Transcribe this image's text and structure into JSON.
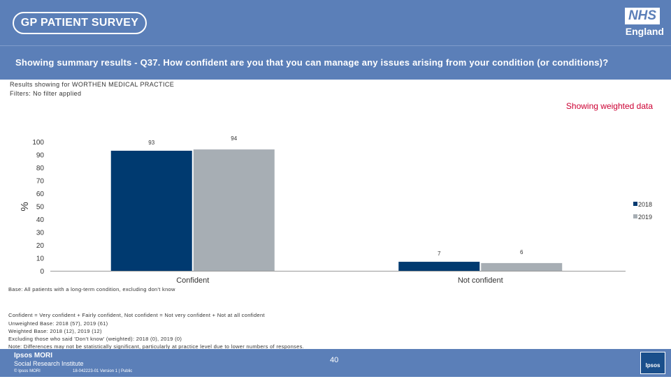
{
  "header": {
    "survey_logo": "GP PATIENT SURVEY",
    "nhs_logo": "NHS",
    "nhs_sub": "England"
  },
  "question": "Showing summary results - Q37.  How confident are you that you can manage any issues arising from your condition (or conditions)?",
  "results_for": "Results showing for WORTHEN MEDICAL PRACTICE",
  "filters": "Filters: No filter applied",
  "weighted_label": "Showing weighted data",
  "chart_data": {
    "type": "bar",
    "categories": [
      "Confident",
      "Not confident"
    ],
    "series": [
      {
        "name": "2018",
        "values": [
          93,
          7
        ],
        "color": "#003a70"
      },
      {
        "name": "2019",
        "values": [
          94,
          6
        ],
        "color": "#a7aeb4"
      }
    ],
    "ylabel": "%",
    "ylim": [
      0,
      100
    ],
    "yticks": [
      0,
      10,
      20,
      30,
      40,
      50,
      60,
      70,
      80,
      90,
      100
    ],
    "legend_position": "right",
    "grid": false
  },
  "base_note": "Base: All patients with a long-term condition, excluding don't know",
  "notes": [
    "Confident = Very confident + Fairly confident, Not confident = Not very confident + Not at all confident",
    "Unweighted Base: 2018 (57), 2019 (61)",
    "Weighted Base: 2018 (12), 2019 (12)",
    "Excluding those who said 'Don't know' (weighted): 2018 (0), 2019 (0)",
    "Note: Differences may not be statistically significant, particularly at practice level due to lower numbers of responses."
  ],
  "footer": {
    "ipsos_title": "Ipsos MORI",
    "ipsos_sub": "Social Research Institute",
    "copyright": "© Ipsos MORI",
    "job_number": "18-042223-01 Version 1 | Public",
    "page_number": "40",
    "ipsos_logo": "Ipsos"
  }
}
